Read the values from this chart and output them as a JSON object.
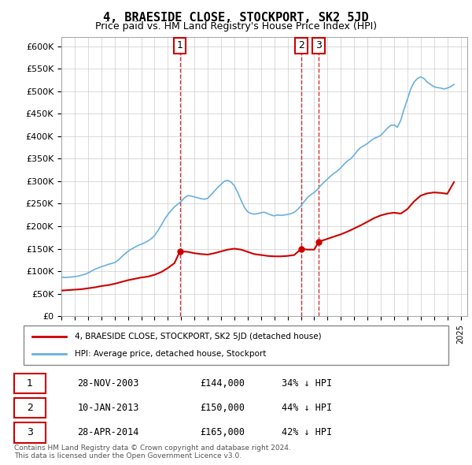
{
  "title": "4, BRAESIDE CLOSE, STOCKPORT, SK2 5JD",
  "subtitle": "Price paid vs. HM Land Registry's House Price Index (HPI)",
  "ylabel_ticks": [
    "£0",
    "£50K",
    "£100K",
    "£150K",
    "£200K",
    "£250K",
    "£300K",
    "£350K",
    "£400K",
    "£450K",
    "£500K",
    "£550K",
    "£600K"
  ],
  "ytick_values": [
    0,
    50000,
    100000,
    150000,
    200000,
    250000,
    300000,
    350000,
    400000,
    450000,
    500000,
    550000,
    600000
  ],
  "xlim_start": 1995.0,
  "xlim_end": 2025.5,
  "ylim_min": 0,
  "ylim_max": 620000,
  "hpi_color": "#6ab0de",
  "price_color": "#cc0000",
  "vline_color": "#cc0000",
  "annotation_box_color": "#cc0000",
  "background_color": "#ffffff",
  "grid_color": "#cccccc",
  "purchases": [
    {
      "number": 1,
      "date": "28-NOV-2003",
      "price": 144000,
      "year": 2003.9,
      "hpi_pct": "34% ↓ HPI"
    },
    {
      "number": 2,
      "date": "10-JAN-2013",
      "price": 150000,
      "year": 2013.03,
      "hpi_pct": "44% ↓ HPI"
    },
    {
      "number": 3,
      "date": "28-APR-2014",
      "price": 165000,
      "year": 2014.32,
      "hpi_pct": "42% ↓ HPI"
    }
  ],
  "legend_label_price": "4, BRAESIDE CLOSE, STOCKPORT, SK2 5JD (detached house)",
  "legend_label_hpi": "HPI: Average price, detached house, Stockport",
  "footer": "Contains HM Land Registry data © Crown copyright and database right 2024.\nThis data is licensed under the Open Government Licence v3.0.",
  "hpi_data_x": [
    1995.0,
    1995.25,
    1995.5,
    1995.75,
    1996.0,
    1996.25,
    1996.5,
    1996.75,
    1997.0,
    1997.25,
    1997.5,
    1997.75,
    1998.0,
    1998.25,
    1998.5,
    1998.75,
    1999.0,
    1999.25,
    1999.5,
    1999.75,
    2000.0,
    2000.25,
    2000.5,
    2000.75,
    2001.0,
    2001.25,
    2001.5,
    2001.75,
    2002.0,
    2002.25,
    2002.5,
    2002.75,
    2003.0,
    2003.25,
    2003.5,
    2003.75,
    2004.0,
    2004.25,
    2004.5,
    2004.75,
    2005.0,
    2005.25,
    2005.5,
    2005.75,
    2006.0,
    2006.25,
    2006.5,
    2006.75,
    2007.0,
    2007.25,
    2007.5,
    2007.75,
    2008.0,
    2008.25,
    2008.5,
    2008.75,
    2009.0,
    2009.25,
    2009.5,
    2009.75,
    2010.0,
    2010.25,
    2010.5,
    2010.75,
    2011.0,
    2011.25,
    2011.5,
    2011.75,
    2012.0,
    2012.25,
    2012.5,
    2012.75,
    2013.0,
    2013.25,
    2013.5,
    2013.75,
    2014.0,
    2014.25,
    2014.5,
    2014.75,
    2015.0,
    2015.25,
    2015.5,
    2015.75,
    2016.0,
    2016.25,
    2016.5,
    2016.75,
    2017.0,
    2017.25,
    2017.5,
    2017.75,
    2018.0,
    2018.25,
    2018.5,
    2018.75,
    2019.0,
    2019.25,
    2019.5,
    2019.75,
    2020.0,
    2020.25,
    2020.5,
    2020.75,
    2021.0,
    2021.25,
    2021.5,
    2021.75,
    2022.0,
    2022.25,
    2022.5,
    2022.75,
    2023.0,
    2023.25,
    2023.5,
    2023.75,
    2024.0,
    2024.25,
    2024.5
  ],
  "hpi_data_y": [
    87000,
    86000,
    86500,
    87000,
    88000,
    89000,
    91000,
    93000,
    96000,
    100000,
    104000,
    107000,
    110000,
    112000,
    115000,
    117000,
    119000,
    124000,
    131000,
    138000,
    144000,
    149000,
    153000,
    157000,
    160000,
    163000,
    167000,
    172000,
    179000,
    190000,
    202000,
    215000,
    226000,
    235000,
    243000,
    249000,
    255000,
    263000,
    268000,
    267000,
    265000,
    263000,
    261000,
    260000,
    262000,
    270000,
    278000,
    286000,
    293000,
    300000,
    302000,
    298000,
    290000,
    275000,
    258000,
    242000,
    232000,
    228000,
    227000,
    228000,
    230000,
    231000,
    228000,
    225000,
    223000,
    225000,
    224000,
    225000,
    226000,
    228000,
    231000,
    237000,
    245000,
    255000,
    264000,
    270000,
    275000,
    282000,
    291000,
    298000,
    305000,
    312000,
    318000,
    323000,
    330000,
    338000,
    345000,
    350000,
    358000,
    368000,
    375000,
    379000,
    384000,
    390000,
    395000,
    398000,
    402000,
    410000,
    418000,
    424000,
    425000,
    420000,
    435000,
    460000,
    482000,
    505000,
    520000,
    528000,
    532000,
    528000,
    520000,
    515000,
    510000,
    508000,
    507000,
    505000,
    507000,
    510000,
    515000
  ],
  "price_data_x": [
    1995.0,
    1995.5,
    1996.0,
    1996.5,
    1997.0,
    1997.5,
    1998.0,
    1998.5,
    1999.0,
    1999.5,
    2000.0,
    2000.5,
    2001.0,
    2001.5,
    2002.0,
    2002.5,
    2003.0,
    2003.5,
    2003.9,
    2004.0,
    2004.5,
    2005.0,
    2005.5,
    2006.0,
    2006.5,
    2007.0,
    2007.5,
    2008.0,
    2008.5,
    2009.0,
    2009.5,
    2010.0,
    2010.5,
    2011.0,
    2011.5,
    2012.0,
    2012.5,
    2013.03,
    2013.5,
    2014.0,
    2014.32,
    2014.5,
    2015.0,
    2015.5,
    2016.0,
    2016.5,
    2017.0,
    2017.5,
    2018.0,
    2018.5,
    2019.0,
    2019.5,
    2020.0,
    2020.5,
    2021.0,
    2021.5,
    2022.0,
    2022.5,
    2023.0,
    2023.5,
    2024.0,
    2024.5
  ],
  "price_data_y": [
    57000,
    58000,
    59000,
    60000,
    62000,
    64000,
    67000,
    69000,
    72000,
    76000,
    80000,
    83000,
    86000,
    88000,
    92000,
    98000,
    107000,
    118000,
    144000,
    144000,
    143000,
    140000,
    138000,
    137000,
    140000,
    144000,
    148000,
    150000,
    148000,
    143000,
    138000,
    136000,
    134000,
    133000,
    133000,
    134000,
    136000,
    150000,
    148000,
    148000,
    165000,
    167000,
    172000,
    177000,
    182000,
    188000,
    195000,
    202000,
    210000,
    218000,
    224000,
    228000,
    230000,
    228000,
    238000,
    255000,
    268000,
    273000,
    275000,
    274000,
    272000,
    298000
  ]
}
